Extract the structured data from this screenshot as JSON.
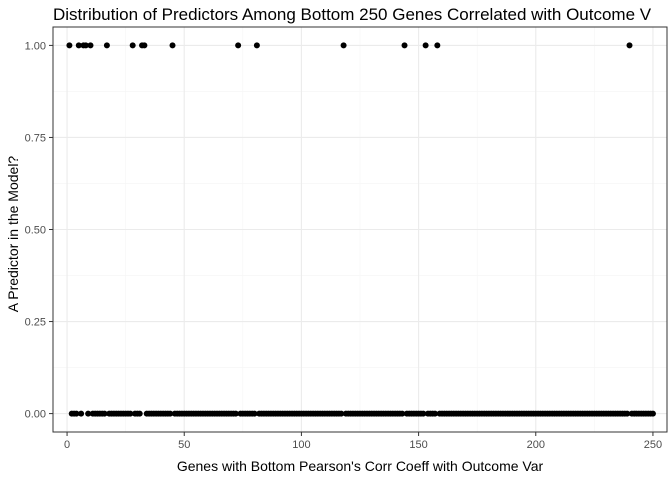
{
  "chart_data": {
    "type": "scatter",
    "title": "Distribution of Predictors Among Bottom 250 Genes Correlated with Outcome V",
    "xlabel": "Genes with Bottom Pearson's Corr Coeff with Outcome Var",
    "ylabel": "A Predictor in the Model?",
    "xlim": [
      -6,
      256
    ],
    "ylim": [
      -0.05,
      1.05
    ],
    "x_ticks": [
      0,
      50,
      100,
      150,
      200,
      250
    ],
    "y_ticks": [
      0.0,
      0.25,
      0.5,
      0.75,
      1.0
    ],
    "x_tick_labels": [
      "0",
      "50",
      "100",
      "150",
      "200",
      "250"
    ],
    "y_tick_labels": [
      "0.00",
      "0.25",
      "0.50",
      "0.75",
      "1.00"
    ],
    "grid": true,
    "predictor_x": [
      1,
      5,
      7,
      8,
      10,
      17,
      28,
      32,
      33,
      45,
      73,
      81,
      118,
      144,
      153,
      158,
      240
    ],
    "points_y1": [],
    "points_y0": [],
    "point_color": "#000000",
    "panel_border_color": "#333333",
    "grid_major_color": "#ebebeb",
    "grid_minor_color": "#f5f5f5"
  }
}
